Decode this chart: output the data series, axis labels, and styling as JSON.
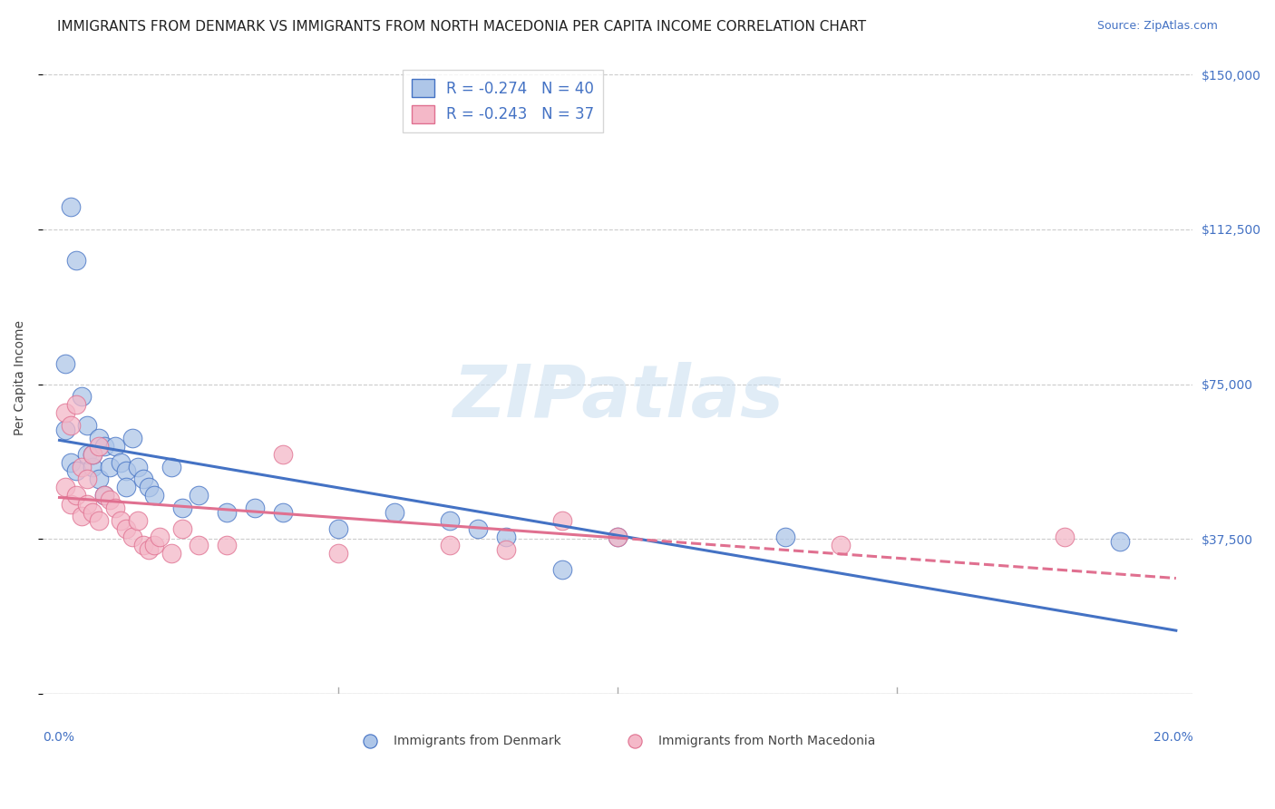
{
  "title": "IMMIGRANTS FROM DENMARK VS IMMIGRANTS FROM NORTH MACEDONIA PER CAPITA INCOME CORRELATION CHART",
  "source": "Source: ZipAtlas.com",
  "ylabel": "Per Capita Income",
  "xlim": [
    0.0,
    0.2
  ],
  "ylim": [
    0,
    150000
  ],
  "yticks": [
    0,
    37500,
    75000,
    112500,
    150000
  ],
  "ytick_labels": [
    "",
    "$37,500",
    "$75,000",
    "$112,500",
    "$150,000"
  ],
  "grid_color": "#cccccc",
  "background_color": "#ffffff",
  "denmark_color": "#aec6e8",
  "denmark_line_color": "#4472c4",
  "macedonia_color": "#f4b8c8",
  "macedonia_line_color": "#e07090",
  "denmark_R": -0.274,
  "denmark_N": 40,
  "macedonia_R": -0.243,
  "macedonia_N": 37,
  "dk_x": [
    0.001,
    0.001,
    0.002,
    0.002,
    0.003,
    0.003,
    0.004,
    0.005,
    0.005,
    0.006,
    0.006,
    0.007,
    0.007,
    0.008,
    0.008,
    0.009,
    0.01,
    0.011,
    0.012,
    0.012,
    0.013,
    0.014,
    0.015,
    0.016,
    0.017,
    0.02,
    0.022,
    0.025,
    0.03,
    0.035,
    0.04,
    0.05,
    0.06,
    0.07,
    0.075,
    0.08,
    0.09,
    0.1,
    0.13,
    0.19
  ],
  "dk_y": [
    80000,
    64000,
    118000,
    56000,
    105000,
    54000,
    72000,
    65000,
    58000,
    55000,
    58000,
    62000,
    52000,
    60000,
    48000,
    55000,
    60000,
    56000,
    54000,
    50000,
    62000,
    55000,
    52000,
    50000,
    48000,
    55000,
    45000,
    48000,
    44000,
    45000,
    44000,
    40000,
    44000,
    42000,
    40000,
    38000,
    30000,
    38000,
    38000,
    37000
  ],
  "mk_x": [
    0.001,
    0.001,
    0.002,
    0.002,
    0.003,
    0.003,
    0.004,
    0.004,
    0.005,
    0.005,
    0.006,
    0.006,
    0.007,
    0.007,
    0.008,
    0.009,
    0.01,
    0.011,
    0.012,
    0.013,
    0.014,
    0.015,
    0.016,
    0.017,
    0.018,
    0.02,
    0.022,
    0.025,
    0.03,
    0.04,
    0.05,
    0.07,
    0.08,
    0.09,
    0.1,
    0.14,
    0.18
  ],
  "mk_y": [
    68000,
    50000,
    65000,
    46000,
    70000,
    48000,
    55000,
    43000,
    52000,
    46000,
    58000,
    44000,
    60000,
    42000,
    48000,
    47000,
    45000,
    42000,
    40000,
    38000,
    42000,
    36000,
    35000,
    36000,
    38000,
    34000,
    40000,
    36000,
    36000,
    58000,
    34000,
    36000,
    35000,
    42000,
    38000,
    36000,
    38000
  ],
  "watermark": "ZIPatlas",
  "legend_label_denmark": "Immigrants from Denmark",
  "legend_label_macedonia": "Immigrants from North Macedonia",
  "title_fontsize": 11,
  "axis_label_fontsize": 10,
  "tick_label_fontsize": 10,
  "legend_fontsize": 11
}
